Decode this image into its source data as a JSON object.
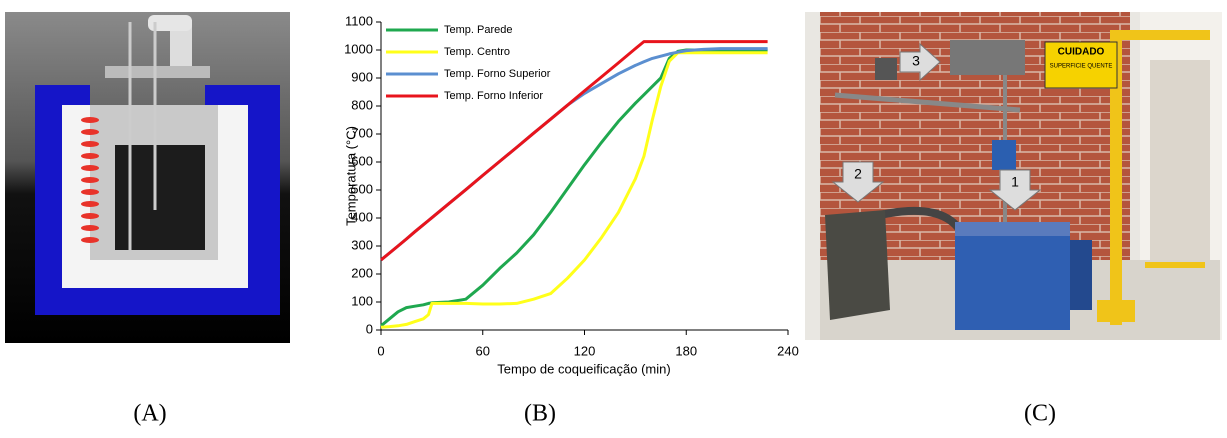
{
  "chart_data": {
    "type": "line",
    "x_label": "Tempo de coqueificação (min)",
    "y_label": "Temperatura (°C)",
    "x": [
      0,
      5,
      10,
      15,
      20,
      25,
      28,
      30,
      40,
      50,
      60,
      70,
      80,
      90,
      100,
      110,
      120,
      130,
      140,
      150,
      155,
      160,
      165,
      170,
      175,
      180,
      190,
      200,
      228
    ],
    "series": [
      {
        "name": "Temp. Parede",
        "color": "#1fa84f",
        "values": [
          15,
          40,
          65,
          80,
          85,
          90,
          95,
          97,
          100,
          110,
          160,
          220,
          275,
          340,
          420,
          505,
          590,
          670,
          745,
          810,
          840,
          870,
          900,
          970,
          995,
          1000,
          1000,
          1000,
          1000
        ]
      },
      {
        "name": "Temp. Centro",
        "color": "#ffff1a",
        "values": [
          10,
          12,
          15,
          20,
          30,
          40,
          55,
          95,
          95,
          95,
          93,
          93,
          95,
          110,
          130,
          185,
          250,
          330,
          420,
          540,
          620,
          750,
          870,
          960,
          990,
          990,
          990,
          990,
          990
        ]
      },
      {
        "name": "Temp. Forno Superior",
        "color": "#5b8fd0",
        "values": [
          250,
          275,
          300,
          325,
          351,
          376,
          391,
          401,
          451,
          501,
          552,
          602,
          652,
          703,
          753,
          803,
          845,
          880,
          915,
          945,
          958,
          970,
          978,
          986,
          992,
          998,
          1002,
          1005,
          1005
        ]
      },
      {
        "name": "Temp. Forno Inferior",
        "color": "#e8141c",
        "values": [
          250,
          275,
          300,
          325,
          351,
          376,
          391,
          401,
          451,
          501,
          552,
          602,
          652,
          703,
          753,
          803,
          854,
          904,
          954,
          1005,
          1030,
          1030,
          1030,
          1030,
          1030,
          1030,
          1030,
          1030,
          1030
        ]
      }
    ],
    "xlim": [
      0,
      240
    ],
    "xticks": [
      0,
      60,
      120,
      180,
      240
    ],
    "ylim": [
      0,
      1100
    ],
    "yticks": [
      0,
      100,
      200,
      300,
      400,
      500,
      600,
      700,
      800,
      900,
      1000,
      1100
    ],
    "grid": false,
    "legend": "upper-left"
  },
  "panel_labels": [
    "(A)",
    "(B)",
    "(C)"
  ],
  "photo": {
    "callouts": [
      "1",
      "2",
      "3"
    ],
    "sign": [
      "CUIDADO",
      "SUPERFICIE QUENTE"
    ]
  }
}
